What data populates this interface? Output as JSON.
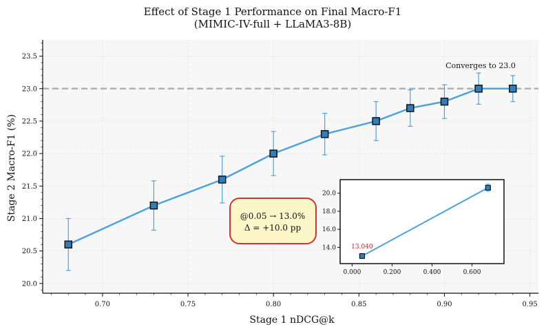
{
  "chart_data": {
    "type": "line",
    "title": "Effect of Stage 1 Performance on Final Macro-F1",
    "subtitle": "(MIMIC-IV-full + LLaMA3-8B)",
    "xlabel": "Stage 1 nDCG@k",
    "ylabel": "Stage 2 Macro-F1 (%)",
    "xlim": [
      0.665,
      0.955
    ],
    "ylim": [
      19.85,
      23.75
    ],
    "xticks": [
      "0.70",
      "0.75",
      "0.80",
      "0.85",
      "0.90",
      "0.95"
    ],
    "yticks": [
      "20.0",
      "20.5",
      "21.0",
      "21.5",
      "22.0",
      "22.5",
      "23.0",
      "23.5"
    ],
    "grid": true,
    "line_color": "#4aa3df",
    "marker_color": "#2f7fbf",
    "series": [
      {
        "x": [
          0.68,
          0.73,
          0.77,
          0.8,
          0.83,
          0.86,
          0.88,
          0.9,
          0.92,
          0.94
        ],
        "y": [
          20.6,
          21.2,
          21.6,
          22.0,
          22.3,
          22.5,
          22.7,
          22.8,
          23.0,
          23.0
        ],
        "err": [
          0.4,
          0.38,
          0.36,
          0.34,
          0.32,
          0.3,
          0.28,
          0.26,
          0.24,
          0.2
        ]
      }
    ],
    "reference_line": {
      "y": 23.0,
      "color": "#b0b0b0",
      "label": "Converges to 23.0"
    },
    "callout": {
      "line1": "@0.05 → 13.0%",
      "line2": "Δ = +10.0 pp",
      "border_color": "#d0342c",
      "fill_color": "#fdf6c9"
    },
    "inset": {
      "xlim": [
        -0.06,
        0.76
      ],
      "ylim": [
        12.2,
        21.5
      ],
      "xticks": [
        "0.000",
        "0.200",
        "0.400",
        "0.600"
      ],
      "yticks": [
        "14.0",
        "16.0",
        "18.0",
        "20.0"
      ],
      "x": [
        0.05,
        0.68
      ],
      "y": [
        13.04,
        20.6
      ],
      "err": [
        0.15,
        0.4
      ],
      "point_label": "13.040"
    }
  }
}
